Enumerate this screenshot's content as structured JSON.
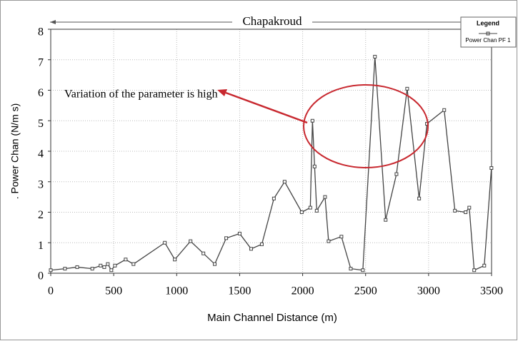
{
  "chart_data": {
    "type": "line",
    "title": "Chapakroud",
    "xlabel": "Main Channel Distance (m)",
    "ylabel": ". Power Chan (N/m s)",
    "legend_title": "Legend",
    "legend": "top-right",
    "grid": true,
    "annotation": "Variation of the parameter is high",
    "xlim": [
      0,
      3500
    ],
    "xticks": [
      0,
      500,
      1000,
      1500,
      2000,
      2500,
      3000,
      3500
    ],
    "ylim": [
      0,
      8
    ],
    "yticks": [
      0,
      1,
      2,
      3,
      4,
      5,
      6,
      7,
      8
    ],
    "series": [
      {
        "name": "Power Chan PF 1",
        "color": "#444444",
        "x": [
          0,
          113,
          210,
          330,
          396,
          425,
          453,
          481,
          510,
          595,
          657,
          906,
          985,
          1110,
          1212,
          1302,
          1393,
          1500,
          1591,
          1676,
          1772,
          1857,
          1993,
          2061,
          2078,
          2095,
          2112,
          2178,
          2206,
          2308,
          2382,
          2478,
          2574,
          2659,
          2745,
          2830,
          2925,
          2987,
          3124,
          3209,
          3294,
          3323,
          3362,
          3442,
          3499
        ],
        "values": [
          0.1,
          0.15,
          0.2,
          0.15,
          0.25,
          0.2,
          0.3,
          0.1,
          0.25,
          0.45,
          0.3,
          1.0,
          0.45,
          1.05,
          0.65,
          0.3,
          1.15,
          1.3,
          0.8,
          0.95,
          2.45,
          3.0,
          2.0,
          2.15,
          5.0,
          3.5,
          2.05,
          2.5,
          1.05,
          1.2,
          0.15,
          0.1,
          7.1,
          1.75,
          3.25,
          6.05,
          2.45,
          4.9,
          5.35,
          2.05,
          2.0,
          2.15,
          0.1,
          0.25,
          3.45
        ]
      }
    ]
  }
}
